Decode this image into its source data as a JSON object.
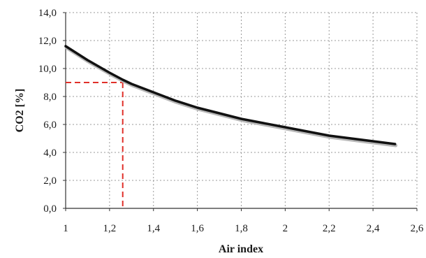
{
  "chart_data": {
    "type": "line",
    "title": "",
    "xlabel": "Air index",
    "ylabel": "CO2 [%]",
    "xlim": [
      1,
      2.6
    ],
    "ylim": [
      0,
      14
    ],
    "x_ticks": [
      1,
      1.2,
      1.4,
      1.6,
      1.8,
      2,
      2.2,
      2.4,
      2.6
    ],
    "x_tick_labels": [
      "1",
      "1,2",
      "1,4",
      "1,6",
      "1,8",
      "2",
      "2,2",
      "2,4",
      "2,6"
    ],
    "y_ticks": [
      0,
      2,
      4,
      6,
      8,
      10,
      12,
      14
    ],
    "y_tick_labels": [
      "0,0",
      "2,0",
      "4,0",
      "6,0",
      "8,0",
      "10,0",
      "12,0",
      "14,0"
    ],
    "grid": true,
    "series": [
      {
        "color": "#111111",
        "x": [
          1.0,
          1.1,
          1.2,
          1.26,
          1.3,
          1.4,
          1.5,
          1.6,
          1.7,
          1.8,
          1.9,
          2.0,
          2.1,
          2.2,
          2.3,
          2.4,
          2.5
        ],
        "y": [
          11.6,
          10.6,
          9.7,
          9.2,
          8.9,
          8.3,
          7.7,
          7.2,
          6.8,
          6.4,
          6.1,
          5.8,
          5.5,
          5.2,
          5.0,
          4.8,
          4.6
        ]
      }
    ],
    "annotation": {
      "type": "dashed-marker",
      "color": "#e0302a",
      "x": 1.26,
      "y": 9.0
    }
  }
}
